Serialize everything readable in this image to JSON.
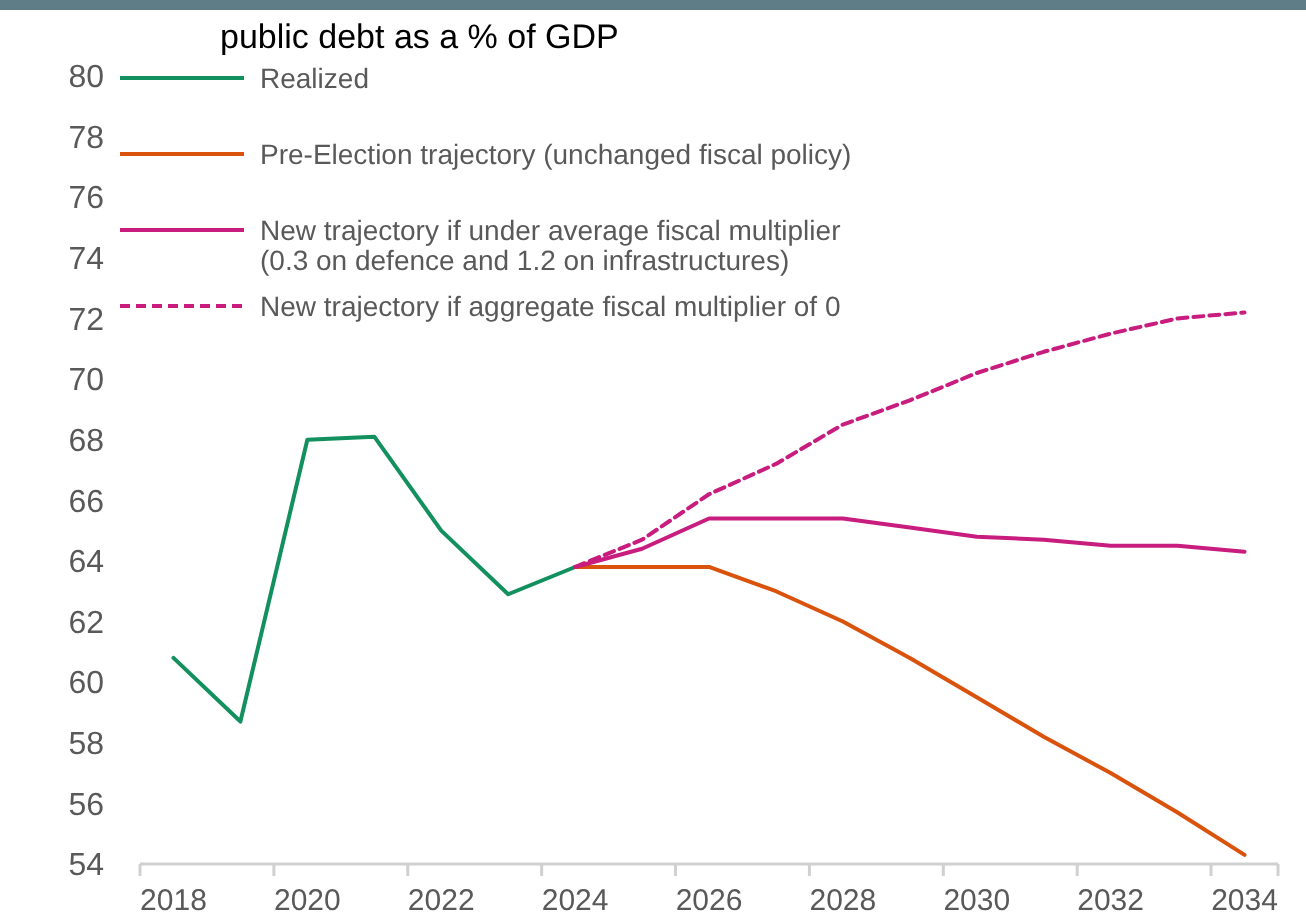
{
  "chart_data": {
    "type": "line",
    "title": "public debt as a % of GDP",
    "categories": [
      "2018",
      null,
      "2020",
      null,
      "2022",
      null,
      "2024",
      null,
      "2026",
      null,
      "2028",
      null,
      "2030",
      null,
      "2032",
      null,
      "2034"
    ],
    "series": [
      {
        "name": "Realized",
        "color": "#12905e",
        "values": [
          60.8,
          58.7,
          68.0,
          68.1,
          65.0,
          62.9,
          63.8,
          null,
          null,
          null,
          null,
          null,
          null,
          null,
          null,
          null,
          null
        ]
      },
      {
        "name": "Pre-Election trajectory (unchanged fiscal policy)",
        "color": "#d9530c",
        "values": [
          null,
          null,
          null,
          null,
          null,
          null,
          63.8,
          63.8,
          63.8,
          63.0,
          62.0,
          60.8,
          59.5,
          58.2,
          57.0,
          55.7,
          54.3
        ]
      },
      {
        "name": "New trajectory if under average fiscal multiplier (0.3 on defence and 1.2 on infrastructures)",
        "color": "#c81c7f",
        "values": [
          null,
          null,
          null,
          null,
          null,
          null,
          63.8,
          64.4,
          65.4,
          65.4,
          65.4,
          65.1,
          64.8,
          64.7,
          64.5,
          64.5,
          64.3
        ]
      },
      {
        "name": "New trajectory if aggregate fiscal multiplier of 0",
        "color": "#c81c7f",
        "line_style": "dashed",
        "values": [
          null,
          null,
          null,
          null,
          null,
          null,
          63.8,
          64.7,
          66.2,
          67.2,
          68.5,
          69.3,
          70.2,
          70.9,
          71.5,
          72.0,
          72.2
        ]
      }
    ],
    "ylim": [
      54,
      80
    ],
    "yticks": [
      54,
      56,
      58,
      60,
      62,
      64,
      66,
      68,
      70,
      72,
      74,
      76,
      78,
      80
    ],
    "grid": false,
    "legend": "top left",
    "marker": "none"
  }
}
